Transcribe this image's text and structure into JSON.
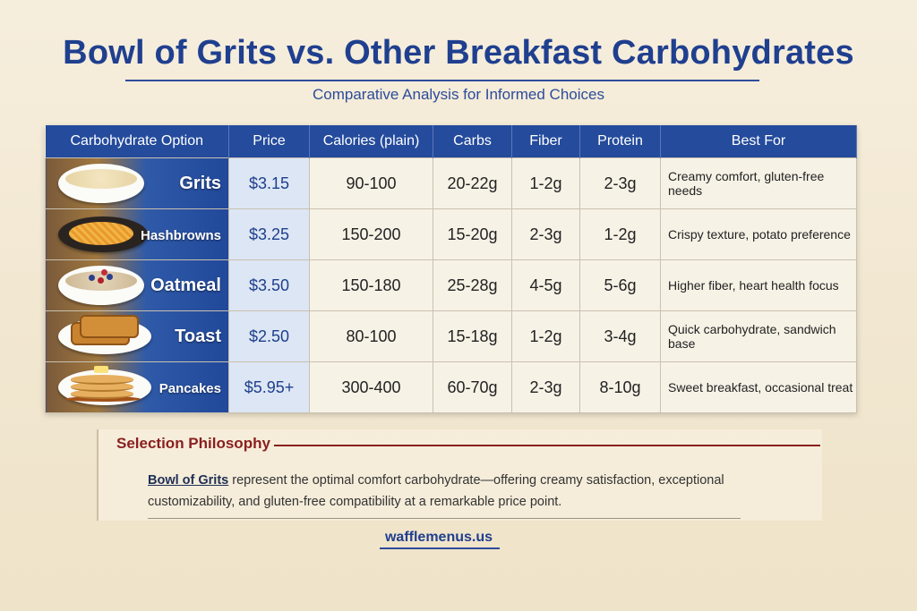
{
  "title": "Bowl of Grits vs. Other Breakfast Carbohydrates",
  "subtitle": "Comparative Analysis for Informed Choices",
  "table": {
    "headers": [
      "Carbohydrate Option",
      "Price",
      "Calories (plain)",
      "Carbs",
      "Fiber",
      "Protein",
      "Best For"
    ],
    "rows": [
      {
        "name": "Grits",
        "image": "grits-bowl-image",
        "price": "$3.15",
        "calories": "90-100",
        "carbs": "20-22g",
        "fiber": "1-2g",
        "protein": "2-3g",
        "best_for": "Creamy comfort, gluten-free needs"
      },
      {
        "name": "Hashbrowns",
        "image": "hashbrowns-plate-image",
        "price": "$3.25",
        "calories": "150-200",
        "carbs": "15-20g",
        "fiber": "2-3g",
        "protein": "1-2g",
        "best_for": "Crispy texture, potato preference"
      },
      {
        "name": "Oatmeal",
        "image": "oatmeal-bowl-image",
        "price": "$3.50",
        "calories": "150-180",
        "carbs": "25-28g",
        "fiber": "4-5g",
        "protein": "5-6g",
        "best_for": "Higher fiber, heart health focus"
      },
      {
        "name": "Toast",
        "image": "toast-plate-image",
        "price": "$2.50",
        "calories": "80-100",
        "carbs": "15-18g",
        "fiber": "1-2g",
        "protein": "3-4g",
        "best_for": "Quick carbohydrate, sandwich base"
      },
      {
        "name": "Pancakes",
        "image": "pancakes-plate-image",
        "price": "$5.95+",
        "calories": "300-400",
        "carbs": "60-70g",
        "fiber": "2-3g",
        "protein": "8-10g",
        "best_for": "Sweet breakfast, occasional treat"
      }
    ]
  },
  "philosophy": {
    "title": "Selection Philosophy",
    "highlight": "Bowl of Grits",
    "text": " represent the optimal comfort carbohydrate—offering creamy satisfaction, exceptional customizability, and gluten-free compatibility at a remarkable price point."
  },
  "footer": {
    "site": "wafflemenus.us"
  },
  "colors": {
    "header_blue": "#244b9c",
    "title_blue": "#1f3f8f",
    "accent_red": "#8a1f1f"
  }
}
